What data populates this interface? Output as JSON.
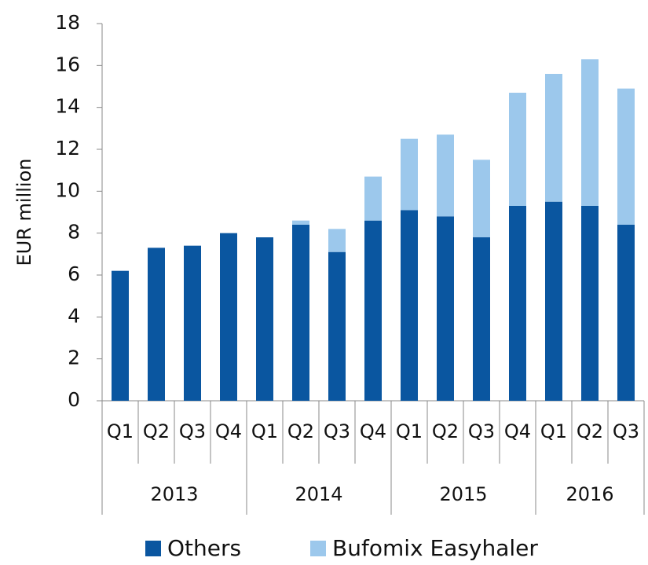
{
  "chart_data": {
    "type": "stacked_bar",
    "y_label": "EUR million",
    "categories": [
      "Q1",
      "Q2",
      "Q3",
      "Q4",
      "Q1",
      "Q2",
      "Q3",
      "Q4",
      "Q1",
      "Q2",
      "Q3",
      "Q4",
      "Q1",
      "Q2",
      "Q3"
    ],
    "groups": [
      {
        "label": "2013",
        "size": 4
      },
      {
        "label": "2014",
        "size": 4
      },
      {
        "label": "2015",
        "size": 4
      },
      {
        "label": "2016",
        "size": 3
      }
    ],
    "series": [
      {
        "name": "Others",
        "color": "#0a56a0",
        "values": [
          6.2,
          7.3,
          7.4,
          8.0,
          7.8,
          8.4,
          7.1,
          8.6,
          9.1,
          8.8,
          7.8,
          9.3,
          9.5,
          9.3,
          8.4
        ]
      },
      {
        "name": "Bufomix Easyhaler",
        "color": "#9cc8ec",
        "values": [
          0,
          0,
          0,
          0,
          0,
          0.2,
          1.1,
          2.1,
          3.4,
          3.9,
          3.7,
          5.4,
          6.1,
          7.0,
          6.5
        ]
      }
    ],
    "ylim": [
      0,
      18
    ],
    "yticks": [
      0,
      2,
      4,
      6,
      8,
      10,
      12,
      14,
      16,
      18
    ],
    "legend": "bottom"
  }
}
